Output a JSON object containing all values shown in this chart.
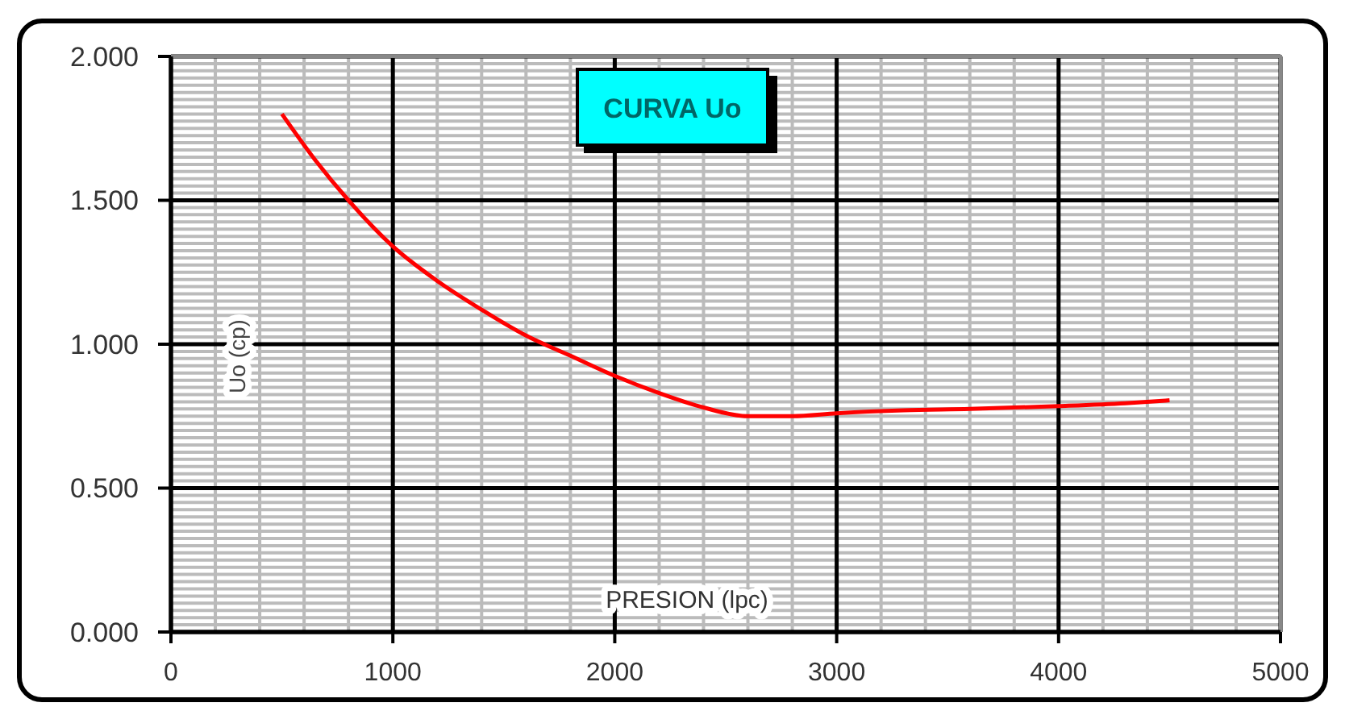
{
  "chart_data": {
    "type": "line",
    "title": "CURVA Uo",
    "xlabel": "PRESION (lpc)",
    "ylabel": "Uo (cp)",
    "x": [
      500,
      650,
      800,
      1000,
      1200,
      1400,
      1600,
      1800,
      2000,
      2200,
      2400,
      2600,
      2800,
      3000,
      3300,
      3600,
      4000,
      4300,
      4500
    ],
    "series": [
      {
        "color": "#ff0000",
        "values": [
          1.8,
          1.64,
          1.5,
          1.34,
          1.22,
          1.12,
          1.03,
          0.96,
          0.89,
          0.83,
          0.78,
          0.75,
          0.75,
          0.76,
          0.77,
          0.775,
          0.785,
          0.795,
          0.805
        ]
      }
    ],
    "xlim": [
      0,
      5000
    ],
    "xticks": [
      0,
      1000,
      2000,
      3000,
      4000,
      5000
    ],
    "ylim": [
      0,
      2
    ],
    "yticks": [
      {
        "value": 0,
        "label": "0.000"
      },
      {
        "value": 0.5,
        "label": "0.500"
      },
      {
        "value": 1,
        "label": "1.000"
      },
      {
        "value": 1.5,
        "label": "1.500"
      },
      {
        "value": 2,
        "label": "2.000"
      }
    ],
    "grid": true,
    "marker": "none",
    "line_style": "solid"
  }
}
